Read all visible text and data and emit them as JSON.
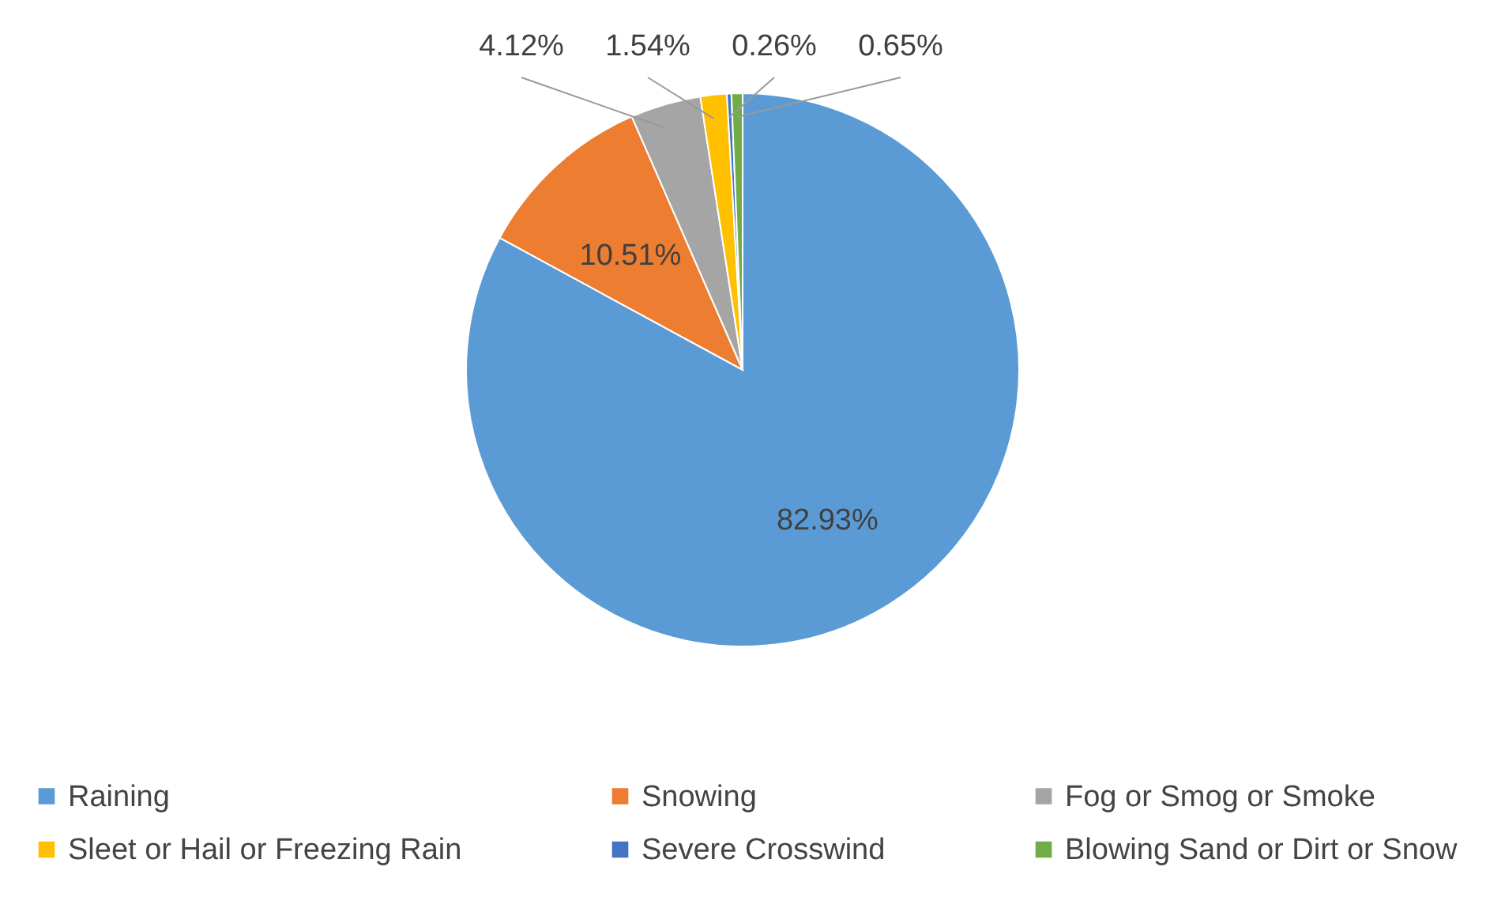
{
  "chart_data": {
    "type": "pie",
    "categories": [
      "Raining",
      "Snowing",
      "Fog or Smog or Smoke",
      "Sleet or Hail or Freezing Rain",
      "Severe Crosswind",
      "Blowing Sand or Dirt or Snow"
    ],
    "values": [
      82.93,
      10.51,
      4.12,
      1.54,
      0.26,
      0.65
    ],
    "colors": [
      "#5b9bd5",
      "#ed7d31",
      "#a5a5a5",
      "#ffc000",
      "#4472c4",
      "#70ad47"
    ],
    "value_labels": [
      "82.93%",
      "10.51%",
      "4.12%",
      "1.54%",
      "0.26%",
      "0.65%"
    ],
    "legend": "bottom"
  }
}
